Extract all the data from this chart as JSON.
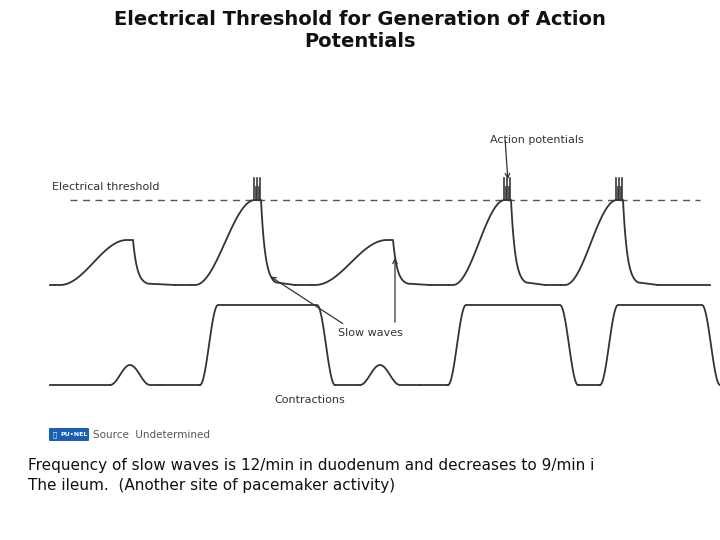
{
  "title": "Electrical Threshold for Generation of Action\nPotentials",
  "title_fontsize": 14,
  "title_fontweight": "bold",
  "bg_color": "#ffffff",
  "line_color": "#333333",
  "label_electrical_threshold": "Electrical threshold",
  "label_action_potentials": "Action potentials",
  "label_slow_waves": "Slow waves",
  "label_contractions": "Contractions",
  "source_text": "Source  Undetermined",
  "bottom_text_line1": "Frequency of slow waves is 12/min in duodenum and decreases to 9/min i",
  "bottom_text_line2": "The ileum.  (Another site of pacemaker activity)"
}
